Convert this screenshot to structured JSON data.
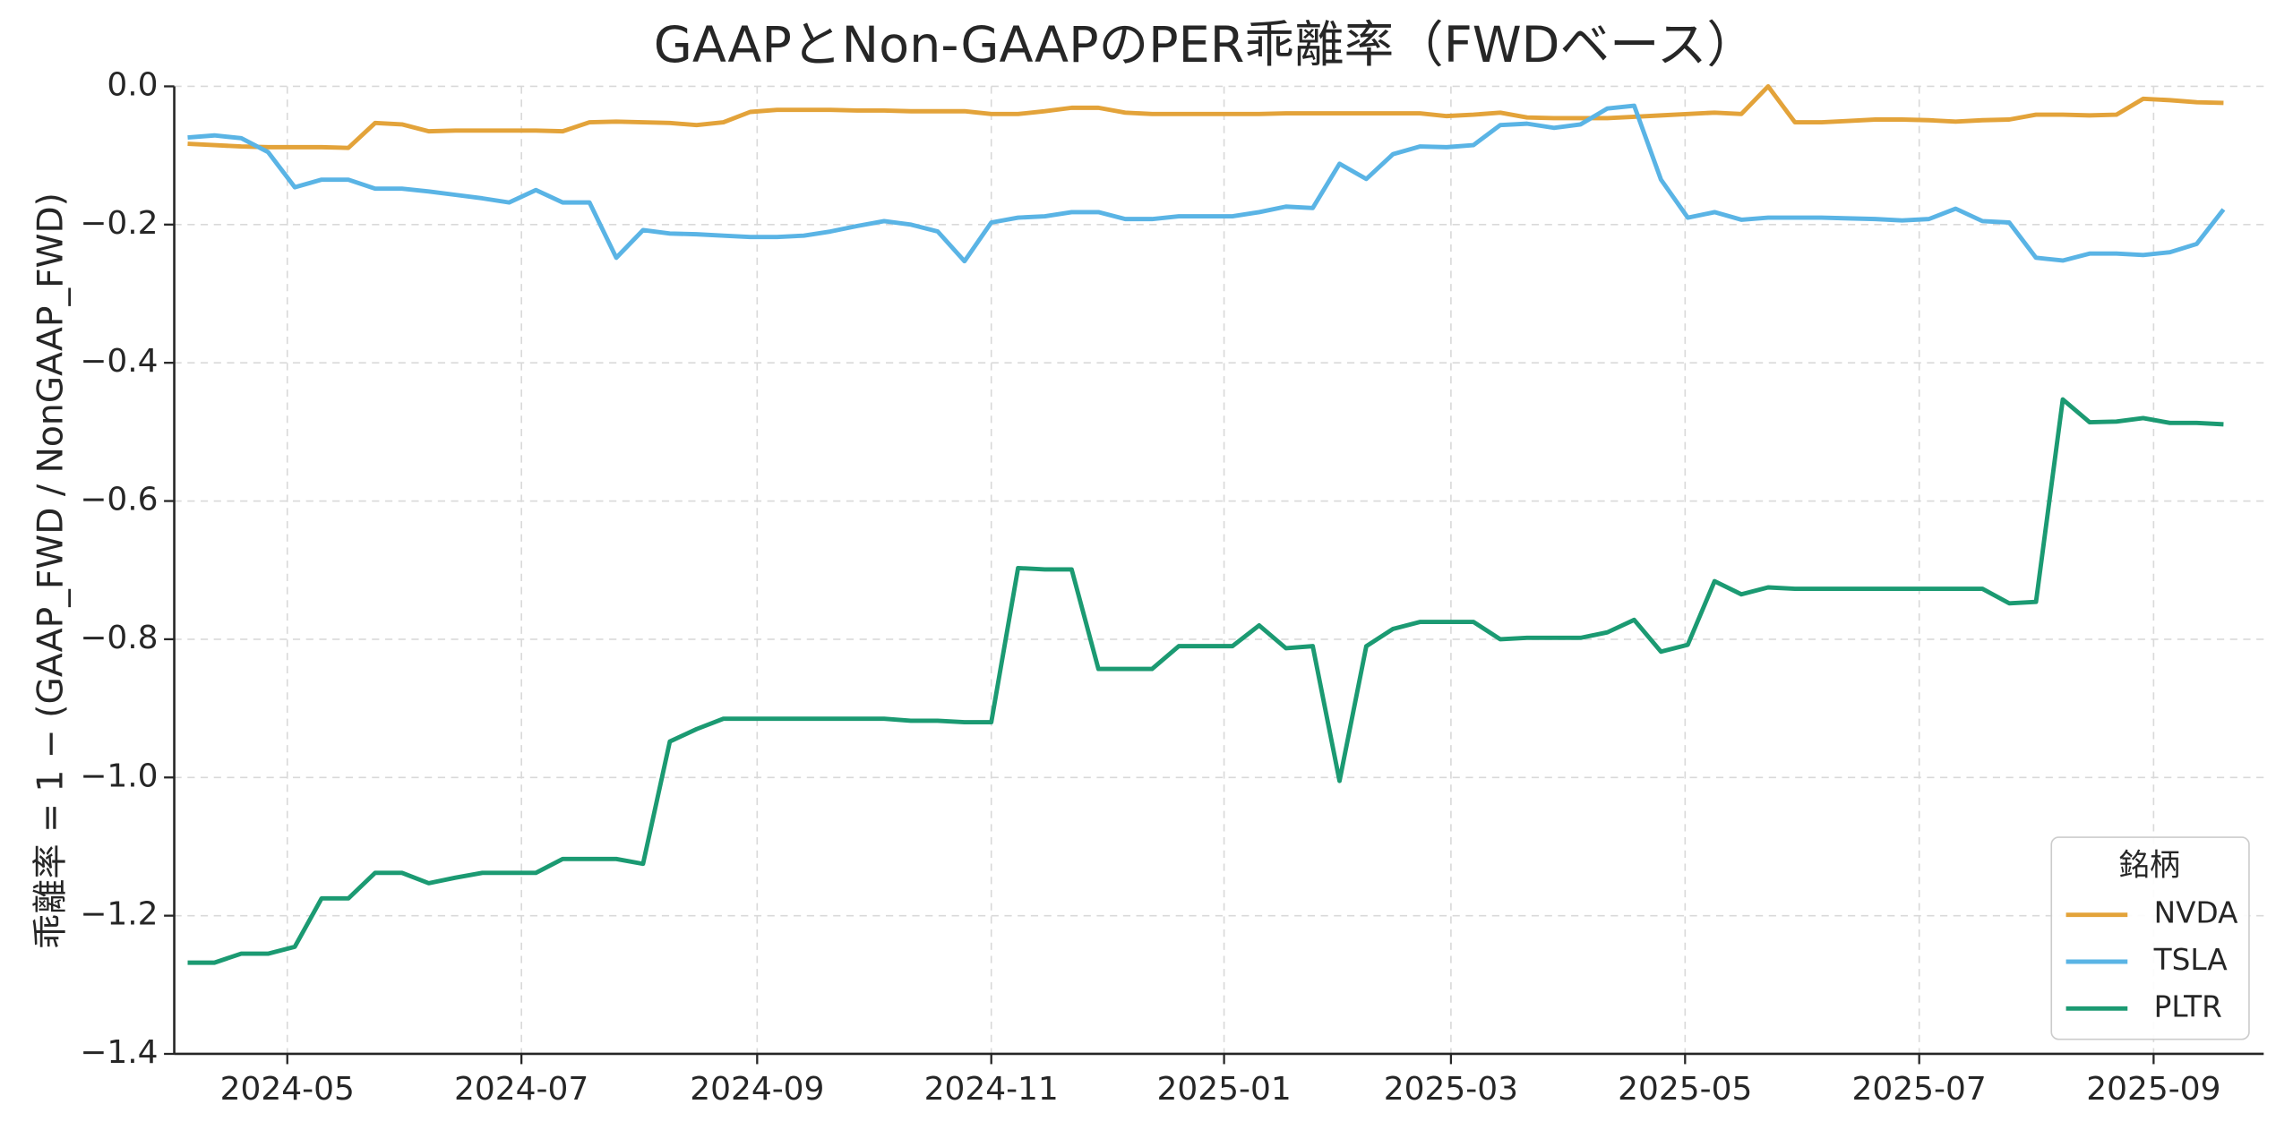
{
  "chart_data": {
    "type": "line",
    "title": "GAAPとNon-GAAPのPER乖離率（FWDベース）",
    "y_label": "乖離率 = 1 − (GAAP_FWD / NonGAAP_FWD)",
    "legend_title": "銘柄",
    "legend_position": "lower right",
    "grid": true,
    "xlim": [
      -0.5,
      77.5
    ],
    "xticks": [
      {
        "value": 3.72,
        "label": "2024-05"
      },
      {
        "value": 12.46,
        "label": "2024-07"
      },
      {
        "value": 21.26,
        "label": "2024-09"
      },
      {
        "value": 30.0,
        "label": "2024-11"
      },
      {
        "value": 38.69,
        "label": "2025-01"
      },
      {
        "value": 47.16,
        "label": "2025-03"
      },
      {
        "value": 55.9,
        "label": "2025-05"
      },
      {
        "value": 64.64,
        "label": "2025-07"
      },
      {
        "value": 73.39,
        "label": "2025-09"
      }
    ],
    "ylim": [
      -1.4,
      0.0
    ],
    "yticks": [
      {
        "value": -1.4,
        "label": "−1.4"
      },
      {
        "value": -1.2,
        "label": "−1.2"
      },
      {
        "value": -1.0,
        "label": "−1.0"
      },
      {
        "value": -0.8,
        "label": "−0.8"
      },
      {
        "value": -0.6,
        "label": "−0.6"
      },
      {
        "value": -0.4,
        "label": "−0.4"
      },
      {
        "value": -0.2,
        "label": "−0.2"
      },
      {
        "value": 0.0,
        "label": "0.0"
      }
    ],
    "series": [
      {
        "name": "NVDA",
        "color": "#e3a33a",
        "values": [
          -0.083,
          -0.085,
          -0.087,
          -0.088,
          -0.088,
          -0.088,
          -0.089,
          -0.053,
          -0.055,
          -0.065,
          -0.064,
          -0.064,
          -0.064,
          -0.064,
          -0.065,
          -0.052,
          -0.051,
          -0.052,
          -0.053,
          -0.056,
          -0.052,
          -0.037,
          -0.034,
          -0.034,
          -0.034,
          -0.035,
          -0.035,
          -0.036,
          -0.036,
          -0.036,
          -0.04,
          -0.04,
          -0.036,
          -0.031,
          -0.031,
          -0.038,
          -0.04,
          -0.04,
          -0.04,
          -0.04,
          -0.04,
          -0.039,
          -0.039,
          -0.039,
          -0.039,
          -0.039,
          -0.039,
          -0.043,
          -0.041,
          -0.038,
          -0.045,
          -0.046,
          -0.046,
          -0.046,
          -0.044,
          -0.042,
          -0.04,
          -0.038,
          -0.04,
          0.0,
          -0.052,
          -0.052,
          -0.05,
          -0.048,
          -0.048,
          -0.049,
          -0.051,
          -0.049,
          -0.048,
          -0.041,
          -0.041,
          -0.042,
          -0.041,
          -0.018,
          -0.02,
          -0.023,
          -0.024
        ]
      },
      {
        "name": "TSLA",
        "color": "#5ab4e5",
        "values": [
          -0.074,
          -0.071,
          -0.075,
          -0.095,
          -0.146,
          -0.135,
          -0.135,
          -0.148,
          -0.148,
          -0.152,
          -0.157,
          -0.162,
          -0.168,
          -0.15,
          -0.168,
          -0.168,
          -0.248,
          -0.208,
          -0.213,
          -0.214,
          -0.216,
          -0.218,
          -0.218,
          -0.216,
          -0.21,
          -0.202,
          -0.195,
          -0.2,
          -0.21,
          -0.253,
          -0.197,
          -0.19,
          -0.188,
          -0.182,
          -0.182,
          -0.192,
          -0.192,
          -0.188,
          -0.188,
          -0.188,
          -0.182,
          -0.174,
          -0.176,
          -0.112,
          -0.134,
          -0.098,
          -0.087,
          -0.088,
          -0.085,
          -0.056,
          -0.054,
          -0.06,
          -0.055,
          -0.032,
          -0.028,
          -0.135,
          -0.19,
          -0.182,
          -0.193,
          -0.19,
          -0.19,
          -0.19,
          -0.191,
          -0.192,
          -0.194,
          -0.192,
          -0.177,
          -0.195,
          -0.197,
          -0.248,
          -0.252,
          -0.242,
          -0.242,
          -0.244,
          -0.24,
          -0.228,
          -0.178
        ]
      },
      {
        "name": "PLTR",
        "color": "#1b9a72",
        "values": [
          -1.268,
          -1.268,
          -1.255,
          -1.255,
          -1.245,
          -1.175,
          -1.175,
          -1.138,
          -1.138,
          -1.153,
          -1.145,
          -1.138,
          -1.138,
          -1.138,
          -1.118,
          -1.118,
          -1.118,
          -1.125,
          -0.948,
          -0.93,
          -0.915,
          -0.915,
          -0.915,
          -0.915,
          -0.915,
          -0.915,
          -0.915,
          -0.918,
          -0.918,
          -0.92,
          -0.92,
          -0.697,
          -0.699,
          -0.699,
          -0.843,
          -0.843,
          -0.843,
          -0.81,
          -0.81,
          -0.81,
          -0.78,
          -0.813,
          -0.81,
          -1.005,
          -0.81,
          -0.785,
          -0.775,
          -0.775,
          -0.775,
          -0.8,
          -0.798,
          -0.798,
          -0.798,
          -0.79,
          -0.772,
          -0.818,
          -0.808,
          -0.716,
          -0.735,
          -0.725,
          -0.727,
          -0.727,
          -0.727,
          -0.727,
          -0.727,
          -0.727,
          -0.727,
          -0.727,
          -0.748,
          -0.746,
          -0.453,
          -0.486,
          -0.485,
          -0.48,
          -0.487,
          -0.487,
          -0.489
        ]
      }
    ]
  }
}
